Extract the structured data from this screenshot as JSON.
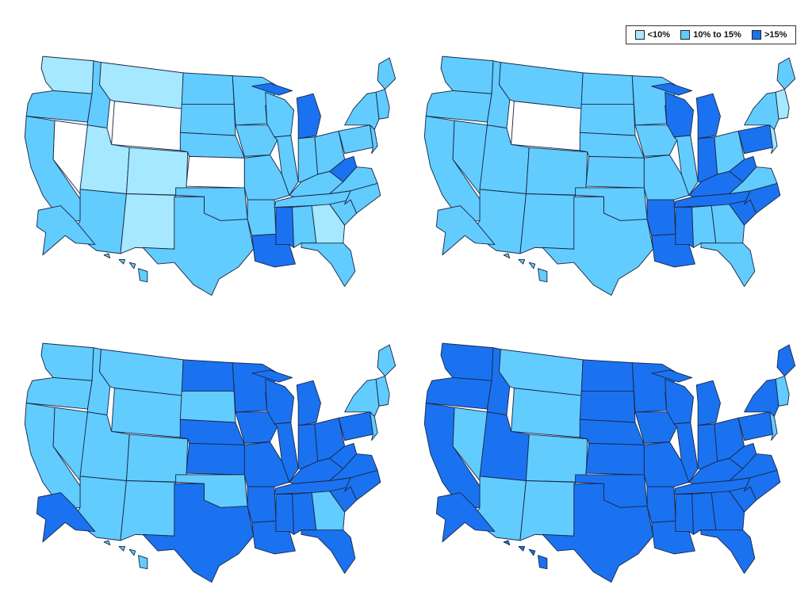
{
  "legend": {
    "items": [
      {
        "label": "<10%",
        "color": "#a6e8ff"
      },
      {
        "label": "10% to 15%",
        "color": "#62ccff"
      },
      {
        "label": ">15%",
        "color": "#1b72f0"
      }
    ]
  },
  "colors": {
    "none": "#ffffff",
    "low": "#a6e8ff",
    "mid": "#62ccff",
    "high": "#1b72f0",
    "border": "#1a2a4a"
  },
  "maps": [
    {
      "id": "top-left",
      "classes": {
        "WA": "low",
        "OR": "mid",
        "CA": "mid",
        "NV": "none",
        "ID": "mid",
        "MT": "low",
        "WY": "none",
        "UT": "low",
        "CO": "low",
        "AZ": "mid",
        "NM": "low",
        "ND": "mid",
        "SD": "mid",
        "NE": "mid",
        "KS": "none",
        "OK": "mid",
        "TX": "mid",
        "MN": "mid",
        "IA": "mid",
        "MO": "mid",
        "AR": "mid",
        "LA": "high",
        "WI": "mid",
        "IL": "mid",
        "MI": "high",
        "IN": "mid",
        "OH": "mid",
        "KY": "mid",
        "TN": "mid",
        "MS": "high",
        "AL": "mid",
        "GA": "low",
        "FL": "mid",
        "SC": "mid",
        "NC": "mid",
        "VA": "mid",
        "WV": "high",
        "PA": "mid",
        "NY": "mid",
        "ME": "mid",
        "NE_NEW": "mid",
        "AK": "mid",
        "HI": "mid"
      }
    },
    {
      "id": "top-right",
      "classes": {
        "WA": "mid",
        "OR": "mid",
        "CA": "mid",
        "NV": "mid",
        "ID": "mid",
        "MT": "mid",
        "WY": "none",
        "UT": "mid",
        "CO": "mid",
        "AZ": "mid",
        "NM": "mid",
        "ND": "mid",
        "SD": "mid",
        "NE": "mid",
        "KS": "mid",
        "OK": "mid",
        "TX": "mid",
        "MN": "mid",
        "IA": "mid",
        "MO": "mid",
        "AR": "high",
        "LA": "high",
        "WI": "high",
        "IL": "mid",
        "MI": "high",
        "IN": "high",
        "OH": "mid",
        "KY": "high",
        "TN": "high",
        "MS": "high",
        "AL": "mid",
        "GA": "mid",
        "FL": "mid",
        "SC": "high",
        "NC": "high",
        "VA": "mid",
        "WV": "high",
        "PA": "high",
        "NY": "mid",
        "ME": "mid",
        "NE_NEW": "low",
        "AK": "mid",
        "HI": "mid"
      }
    },
    {
      "id": "bottom-left",
      "classes": {
        "WA": "mid",
        "OR": "mid",
        "CA": "mid",
        "NV": "mid",
        "ID": "mid",
        "MT": "mid",
        "WY": "mid",
        "UT": "mid",
        "CO": "mid",
        "AZ": "mid",
        "NM": "mid",
        "ND": "high",
        "SD": "mid",
        "NE": "high",
        "KS": "high",
        "OK": "mid",
        "TX": "high",
        "MN": "high",
        "IA": "high",
        "MO": "high",
        "AR": "high",
        "LA": "high",
        "WI": "high",
        "IL": "high",
        "MI": "high",
        "IN": "high",
        "OH": "high",
        "KY": "high",
        "TN": "high",
        "MS": "high",
        "AL": "high",
        "GA": "mid",
        "FL": "high",
        "SC": "high",
        "NC": "high",
        "VA": "high",
        "WV": "high",
        "PA": "high",
        "NY": "mid",
        "ME": "mid",
        "NE_NEW": "mid",
        "AK": "high",
        "HI": "mid"
      }
    },
    {
      "id": "bottom-right",
      "classes": {
        "WA": "high",
        "OR": "high",
        "CA": "high",
        "NV": "mid",
        "ID": "high",
        "MT": "mid",
        "WY": "mid",
        "UT": "high",
        "CO": "mid",
        "AZ": "mid",
        "NM": "mid",
        "ND": "high",
        "SD": "high",
        "NE": "high",
        "KS": "high",
        "OK": "high",
        "TX": "high",
        "MN": "high",
        "IA": "high",
        "MO": "high",
        "AR": "high",
        "LA": "high",
        "WI": "high",
        "IL": "high",
        "MI": "high",
        "IN": "high",
        "OH": "high",
        "KY": "high",
        "TN": "high",
        "MS": "high",
        "AL": "high",
        "GA": "high",
        "FL": "high",
        "SC": "high",
        "NC": "high",
        "VA": "high",
        "WV": "high",
        "PA": "high",
        "NY": "high",
        "ME": "high",
        "NE_NEW": "mid",
        "AK": "high",
        "HI": "high"
      }
    }
  ]
}
